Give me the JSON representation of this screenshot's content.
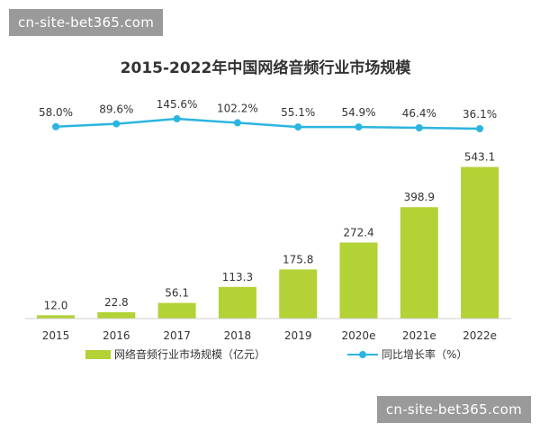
{
  "watermark_top": "cn-site-bet365.com",
  "watermark_bottom": "cn-site-bet365.com",
  "chart_data": {
    "type": "bar",
    "title": "2015-2022年中国网络音频行业市场规模",
    "categories": [
      "2015",
      "2016",
      "2017",
      "2018",
      "2019",
      "2020e",
      "2021e",
      "2022e"
    ],
    "series": [
      {
        "name": "网络音频行业市场规模（亿元）",
        "type": "bar",
        "values": [
          12.0,
          22.8,
          56.1,
          113.3,
          175.8,
          272.4,
          398.9,
          543.1
        ],
        "labels": [
          "12.0",
          "22.8",
          "56.1",
          "113.3",
          "175.8",
          "272.4",
          "398.9",
          "543.1"
        ],
        "color": "#b2d235"
      },
      {
        "name": "同比增长率（%）",
        "type": "line",
        "values": [
          58.0,
          89.6,
          145.6,
          102.2,
          55.1,
          54.9,
          46.4,
          36.1
        ],
        "labels": [
          "58.0%",
          "89.6%",
          "145.6%",
          "102.2%",
          "55.1%",
          "54.9%",
          "46.4%",
          "36.1%"
        ],
        "color": "#2bb5e0"
      }
    ],
    "bar_ylim": [
      0,
      580
    ],
    "line_ylim": [
      0,
      580
    ],
    "legend_position": "bottom",
    "grid": false
  }
}
